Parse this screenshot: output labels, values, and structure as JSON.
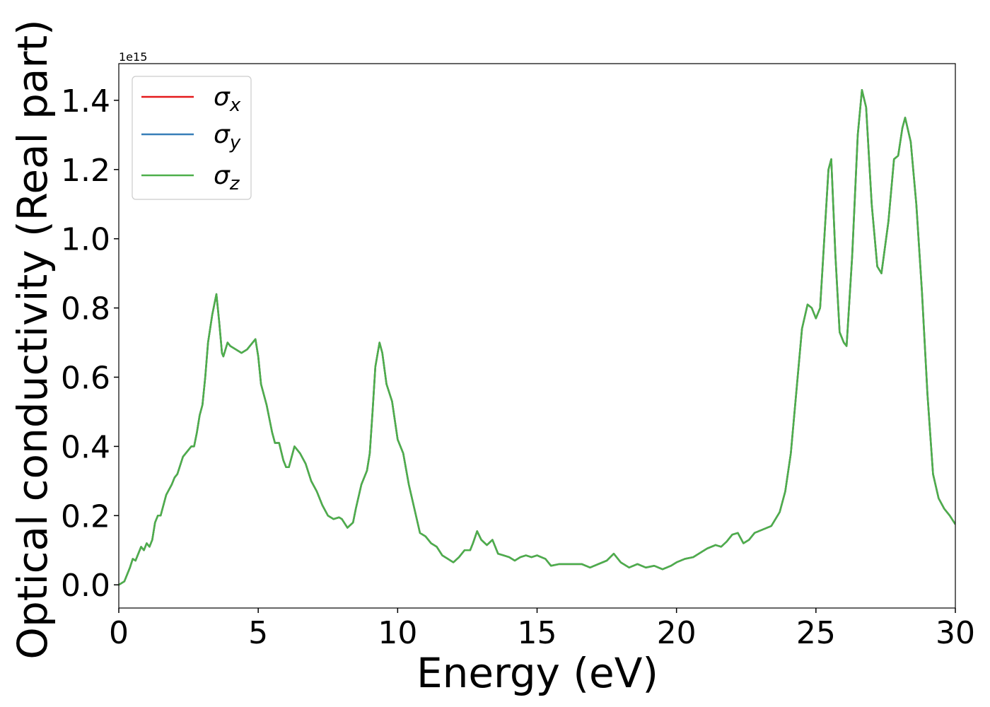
{
  "chart_data": {
    "type": "line",
    "xlabel": "Energy (eV)",
    "ylabel": "Optical conductivity (Real part)",
    "y_offset_text": "1e15",
    "xlim": [
      0,
      30
    ],
    "xticks": [
      0,
      5,
      10,
      15,
      20,
      25,
      30
    ],
    "ylim": [
      -0.067,
      1.506
    ],
    "yticks": [
      {
        "value": 0,
        "label": "0.0"
      },
      0.2,
      0.4,
      0.6,
      0.8,
      {
        "value": 1,
        "label": "1.0"
      },
      1.2,
      1.4
    ],
    "legend": "upper left",
    "x": [
      0,
      0.2,
      0.4,
      0.5,
      0.6,
      0.7,
      0.8,
      0.9,
      1.0,
      1.1,
      1.2,
      1.3,
      1.4,
      1.5,
      1.7,
      1.9,
      2.0,
      2.1,
      2.3,
      2.5,
      2.6,
      2.7,
      2.8,
      2.9,
      3.0,
      3.1,
      3.2,
      3.35,
      3.5,
      3.6,
      3.7,
      3.75,
      3.9,
      4.0,
      4.2,
      4.4,
      4.6,
      4.8,
      4.9,
      5.0,
      5.1,
      5.3,
      5.5,
      5.6,
      5.75,
      5.9,
      6.0,
      6.1,
      6.2,
      6.3,
      6.5,
      6.7,
      6.9,
      7.1,
      7.3,
      7.5,
      7.7,
      7.9,
      8.0,
      8.2,
      8.4,
      8.5,
      8.7,
      8.9,
      9.0,
      9.1,
      9.2,
      9.35,
      9.45,
      9.6,
      9.8,
      10.0,
      10.2,
      10.4,
      10.6,
      10.8,
      11.0,
      11.2,
      11.4,
      11.6,
      11.8,
      12.0,
      12.2,
      12.4,
      12.6,
      12.7,
      12.85,
      13.0,
      13.2,
      13.4,
      13.6,
      13.8,
      14.0,
      14.2,
      14.4,
      14.6,
      14.8,
      15.0,
      15.3,
      15.5,
      15.8,
      16.0,
      16.3,
      16.6,
      16.9,
      17.2,
      17.5,
      17.75,
      18.0,
      18.3,
      18.6,
      18.9,
      19.2,
      19.5,
      19.8,
      20.0,
      20.3,
      20.6,
      20.9,
      21.1,
      21.4,
      21.6,
      21.8,
      22.0,
      22.2,
      22.4,
      22.6,
      22.8,
      23.1,
      23.4,
      23.7,
      23.9,
      24.1,
      24.3,
      24.5,
      24.7,
      24.85,
      25.0,
      25.15,
      25.3,
      25.45,
      25.55,
      25.7,
      25.85,
      26.0,
      26.1,
      26.3,
      26.5,
      26.65,
      26.8,
      27.0,
      27.2,
      27.35,
      27.6,
      27.8,
      27.95,
      28.1,
      28.2,
      28.4,
      28.6,
      28.8,
      29.0,
      29.2,
      29.4,
      29.6,
      29.8,
      30.0
    ],
    "series": [
      {
        "name": "σx",
        "color": "#e41a1c",
        "values": [
          0,
          0.01,
          0.05,
          0.075,
          0.07,
          0.09,
          0.11,
          0.1,
          0.12,
          0.11,
          0.13,
          0.18,
          0.2,
          0.2,
          0.26,
          0.29,
          0.31,
          0.32,
          0.37,
          0.39,
          0.4,
          0.4,
          0.44,
          0.49,
          0.52,
          0.6,
          0.7,
          0.78,
          0.84,
          0.76,
          0.67,
          0.66,
          0.7,
          0.69,
          0.68,
          0.67,
          0.68,
          0.7,
          0.71,
          0.66,
          0.58,
          0.52,
          0.44,
          0.41,
          0.41,
          0.36,
          0.34,
          0.34,
          0.37,
          0.4,
          0.38,
          0.35,
          0.3,
          0.27,
          0.23,
          0.2,
          0.19,
          0.195,
          0.19,
          0.165,
          0.18,
          0.22,
          0.29,
          0.33,
          0.38,
          0.5,
          0.63,
          0.7,
          0.67,
          0.58,
          0.53,
          0.42,
          0.38,
          0.29,
          0.22,
          0.15,
          0.14,
          0.12,
          0.11,
          0.085,
          0.075,
          0.065,
          0.08,
          0.1,
          0.1,
          0.12,
          0.155,
          0.13,
          0.115,
          0.13,
          0.09,
          0.085,
          0.08,
          0.07,
          0.08,
          0.085,
          0.08,
          0.085,
          0.075,
          0.055,
          0.06,
          0.06,
          0.06,
          0.06,
          0.05,
          0.06,
          0.07,
          0.09,
          0.065,
          0.05,
          0.06,
          0.05,
          0.055,
          0.045,
          0.055,
          0.065,
          0.075,
          0.08,
          0.095,
          0.105,
          0.115,
          0.11,
          0.125,
          0.145,
          0.15,
          0.12,
          0.13,
          0.15,
          0.16,
          0.17,
          0.21,
          0.27,
          0.38,
          0.56,
          0.74,
          0.81,
          0.8,
          0.77,
          0.8,
          1.0,
          1.2,
          1.23,
          0.95,
          0.73,
          0.7,
          0.69,
          0.95,
          1.3,
          1.43,
          1.38,
          1.1,
          0.92,
          0.9,
          1.05,
          1.23,
          1.24,
          1.32,
          1.35,
          1.28,
          1.1,
          0.85,
          0.55,
          0.32,
          0.25,
          0.22,
          0.2,
          0.175
        ]
      },
      {
        "name": "σy",
        "color": "#377eb8",
        "values": [
          0,
          0.01,
          0.05,
          0.075,
          0.07,
          0.09,
          0.11,
          0.1,
          0.12,
          0.11,
          0.13,
          0.18,
          0.2,
          0.2,
          0.26,
          0.29,
          0.31,
          0.32,
          0.37,
          0.39,
          0.4,
          0.4,
          0.44,
          0.49,
          0.52,
          0.6,
          0.7,
          0.78,
          0.84,
          0.76,
          0.67,
          0.66,
          0.7,
          0.69,
          0.68,
          0.67,
          0.68,
          0.7,
          0.71,
          0.66,
          0.58,
          0.52,
          0.44,
          0.41,
          0.41,
          0.36,
          0.34,
          0.34,
          0.37,
          0.4,
          0.38,
          0.35,
          0.3,
          0.27,
          0.23,
          0.2,
          0.19,
          0.195,
          0.19,
          0.165,
          0.18,
          0.22,
          0.29,
          0.33,
          0.38,
          0.5,
          0.63,
          0.7,
          0.67,
          0.58,
          0.53,
          0.42,
          0.38,
          0.29,
          0.22,
          0.15,
          0.14,
          0.12,
          0.11,
          0.085,
          0.075,
          0.065,
          0.08,
          0.1,
          0.1,
          0.12,
          0.155,
          0.13,
          0.115,
          0.13,
          0.09,
          0.085,
          0.08,
          0.07,
          0.08,
          0.085,
          0.08,
          0.085,
          0.075,
          0.055,
          0.06,
          0.06,
          0.06,
          0.06,
          0.05,
          0.06,
          0.07,
          0.09,
          0.065,
          0.05,
          0.06,
          0.05,
          0.055,
          0.045,
          0.055,
          0.065,
          0.075,
          0.08,
          0.095,
          0.105,
          0.115,
          0.11,
          0.125,
          0.145,
          0.15,
          0.12,
          0.13,
          0.15,
          0.16,
          0.17,
          0.21,
          0.27,
          0.38,
          0.56,
          0.74,
          0.81,
          0.8,
          0.77,
          0.8,
          1.0,
          1.2,
          1.23,
          0.95,
          0.73,
          0.7,
          0.69,
          0.95,
          1.3,
          1.43,
          1.38,
          1.1,
          0.92,
          0.9,
          1.05,
          1.23,
          1.24,
          1.32,
          1.35,
          1.28,
          1.1,
          0.85,
          0.55,
          0.32,
          0.25,
          0.22,
          0.2,
          0.175
        ]
      },
      {
        "name": "σz",
        "color": "#4daf4a",
        "values": [
          0,
          0.01,
          0.05,
          0.075,
          0.07,
          0.09,
          0.11,
          0.1,
          0.12,
          0.11,
          0.13,
          0.18,
          0.2,
          0.2,
          0.26,
          0.29,
          0.31,
          0.32,
          0.37,
          0.39,
          0.4,
          0.4,
          0.44,
          0.49,
          0.52,
          0.6,
          0.7,
          0.78,
          0.84,
          0.76,
          0.67,
          0.66,
          0.7,
          0.69,
          0.68,
          0.67,
          0.68,
          0.7,
          0.71,
          0.66,
          0.58,
          0.52,
          0.44,
          0.41,
          0.41,
          0.36,
          0.34,
          0.34,
          0.37,
          0.4,
          0.38,
          0.35,
          0.3,
          0.27,
          0.23,
          0.2,
          0.19,
          0.195,
          0.19,
          0.165,
          0.18,
          0.22,
          0.29,
          0.33,
          0.38,
          0.5,
          0.63,
          0.7,
          0.67,
          0.58,
          0.53,
          0.42,
          0.38,
          0.29,
          0.22,
          0.15,
          0.14,
          0.12,
          0.11,
          0.085,
          0.075,
          0.065,
          0.08,
          0.1,
          0.1,
          0.12,
          0.155,
          0.13,
          0.115,
          0.13,
          0.09,
          0.085,
          0.08,
          0.07,
          0.08,
          0.085,
          0.08,
          0.085,
          0.075,
          0.055,
          0.06,
          0.06,
          0.06,
          0.06,
          0.05,
          0.06,
          0.07,
          0.09,
          0.065,
          0.05,
          0.06,
          0.05,
          0.055,
          0.045,
          0.055,
          0.065,
          0.075,
          0.08,
          0.095,
          0.105,
          0.115,
          0.11,
          0.125,
          0.145,
          0.15,
          0.12,
          0.13,
          0.15,
          0.16,
          0.17,
          0.21,
          0.27,
          0.38,
          0.56,
          0.74,
          0.81,
          0.8,
          0.77,
          0.8,
          1.0,
          1.2,
          1.23,
          0.95,
          0.73,
          0.7,
          0.69,
          0.95,
          1.3,
          1.43,
          1.38,
          1.1,
          0.92,
          0.9,
          1.05,
          1.23,
          1.24,
          1.32,
          1.35,
          1.28,
          1.1,
          0.85,
          0.55,
          0.32,
          0.25,
          0.22,
          0.2,
          0.175
        ]
      }
    ]
  }
}
